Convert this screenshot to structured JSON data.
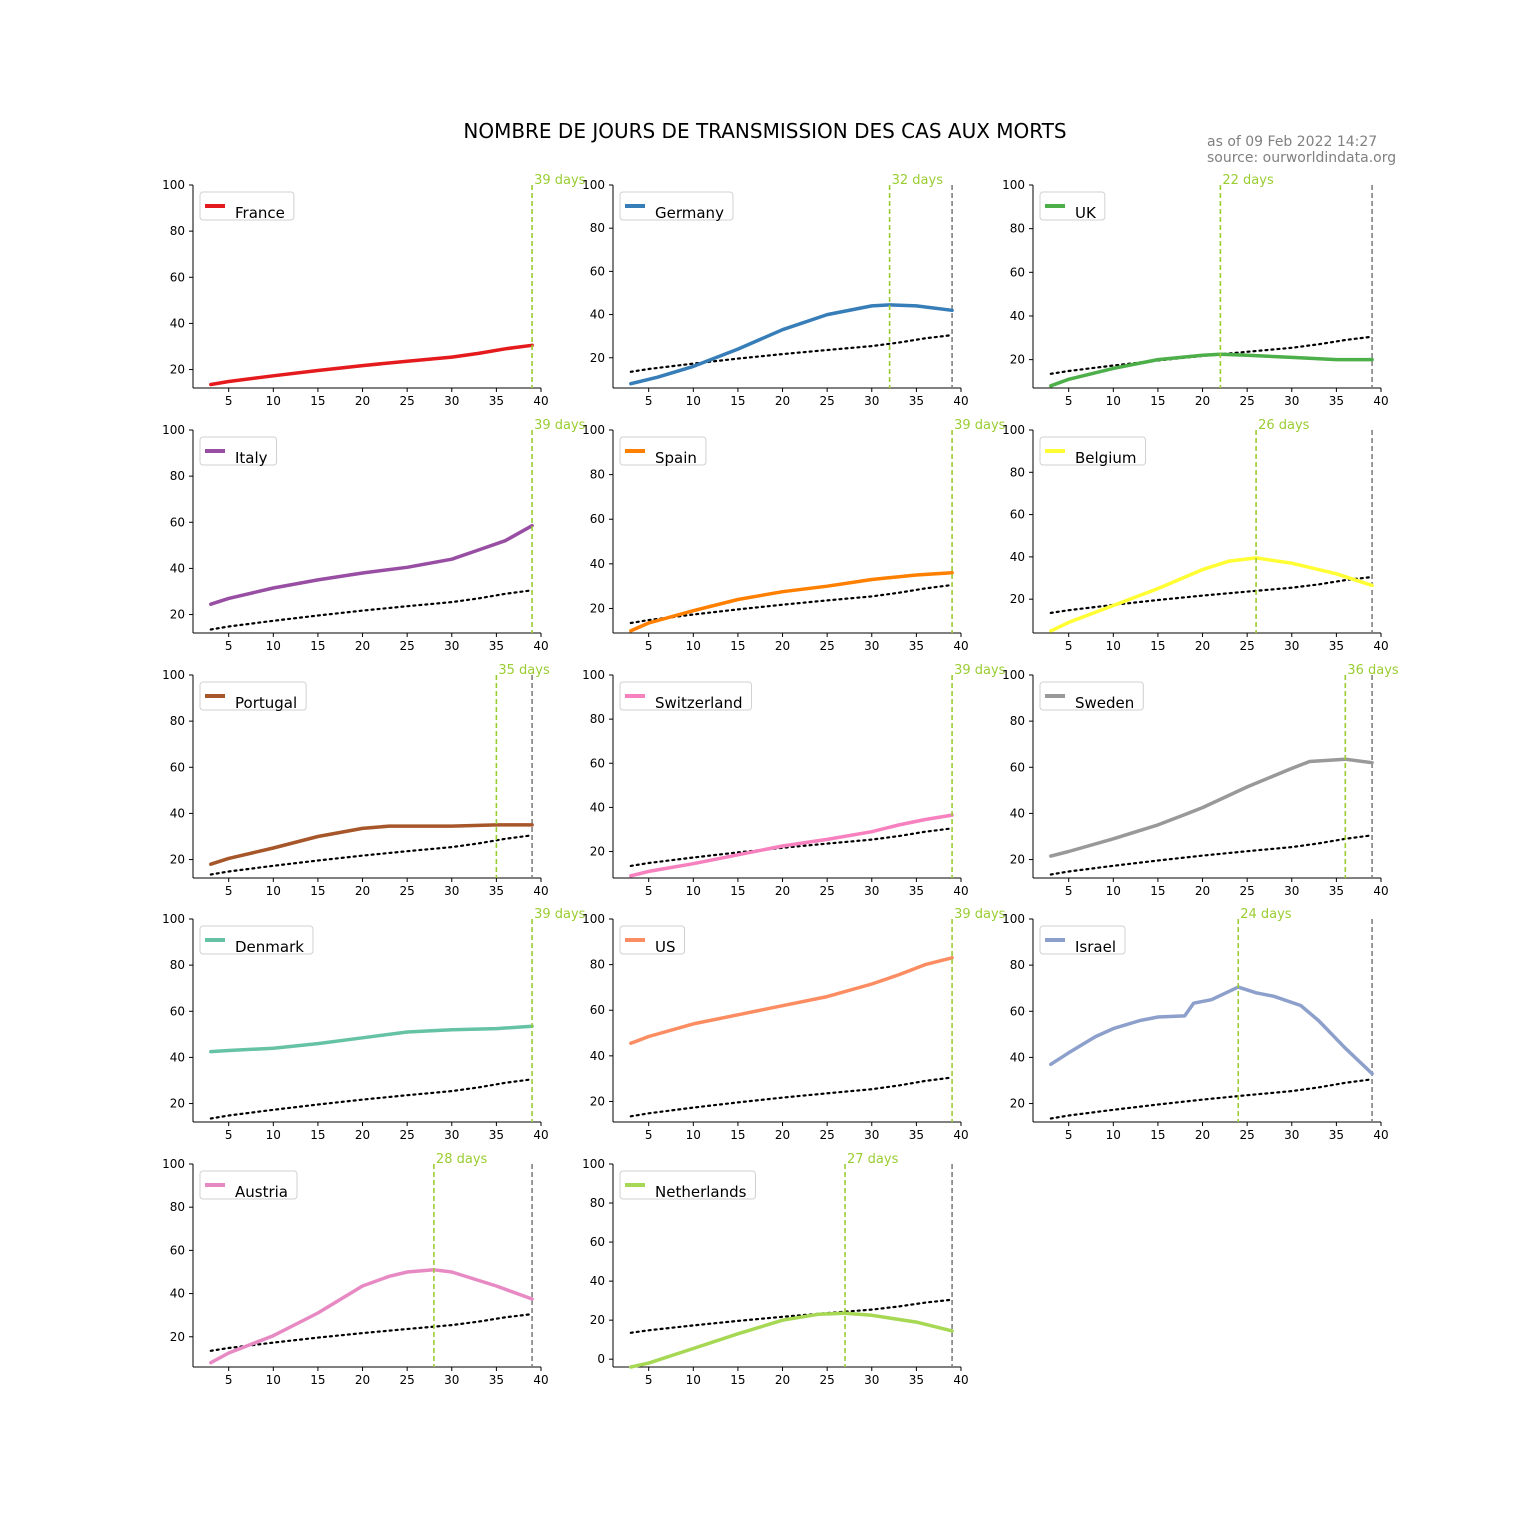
{
  "title": "NOMBRE DE JOURS DE TRANSMISSION DES CAS AUX MORTS",
  "as_of": "as of 09 Feb 2022 14:27",
  "source": "source: ourworldindata.org",
  "chart_data": {
    "type": "line",
    "layout": "small-multiples",
    "xticks": [
      5,
      10,
      15,
      20,
      25,
      30,
      35,
      40
    ],
    "xlim": [
      1,
      40
    ],
    "reference_line": {
      "style": "dotted",
      "color": "#000000",
      "x": [
        3,
        5,
        10,
        15,
        20,
        25,
        30,
        33,
        36,
        39
      ],
      "y": [
        13.5,
        14.8,
        17.3,
        19.6,
        21.7,
        23.6,
        25.4,
        27.0,
        29.0,
        30.5
      ]
    },
    "lag_marker_color": "#9ACD32",
    "end_marker": {
      "x": 39,
      "color": "#808080"
    },
    "panels": [
      {
        "name": "France",
        "color": "#e41a1c",
        "lag_label": "39 days",
        "lag": 39,
        "ylim": [
          12,
          100
        ],
        "yticks": [
          20,
          40,
          60,
          80,
          100
        ],
        "show_reference": false,
        "x": [
          3,
          5,
          10,
          15,
          20,
          25,
          30,
          33,
          36,
          39
        ],
        "y": [
          13.5,
          14.8,
          17.3,
          19.6,
          21.7,
          23.6,
          25.4,
          27.0,
          29.0,
          30.5
        ]
      },
      {
        "name": "Germany",
        "color": "#377eb8",
        "lag_label": "32 days",
        "lag": 32,
        "ylim": [
          6,
          100
        ],
        "yticks": [
          20,
          40,
          60,
          80,
          100
        ],
        "show_reference": true,
        "x": [
          3,
          6,
          10,
          15,
          20,
          25,
          30,
          32,
          35,
          39
        ],
        "y": [
          8,
          11,
          16,
          24,
          33,
          40,
          44,
          44.5,
          44,
          42
        ]
      },
      {
        "name": "UK",
        "color": "#4daf4a",
        "lag_label": "22 days",
        "lag": 22,
        "ylim": [
          7,
          100
        ],
        "yticks": [
          20,
          40,
          60,
          80,
          100
        ],
        "show_reference": true,
        "x": [
          3,
          5,
          10,
          15,
          20,
          22,
          25,
          30,
          35,
          39
        ],
        "y": [
          8,
          11,
          16,
          20,
          22,
          22.5,
          22,
          21,
          20,
          20
        ]
      },
      {
        "name": "Italy",
        "color": "#984ea3",
        "lag_label": "39 days",
        "lag": 39,
        "ylim": [
          12,
          100
        ],
        "yticks": [
          20,
          40,
          60,
          80,
          100
        ],
        "show_reference": true,
        "x": [
          3,
          5,
          10,
          15,
          20,
          25,
          30,
          33,
          36,
          39
        ],
        "y": [
          24.5,
          27,
          31.5,
          35,
          38,
          40.5,
          44,
          48,
          52,
          58.5
        ]
      },
      {
        "name": "Spain",
        "color": "#ff7f00",
        "lag_label": "39 days",
        "lag": 39,
        "ylim": [
          9,
          100
        ],
        "yticks": [
          20,
          40,
          60,
          80,
          100
        ],
        "show_reference": true,
        "x": [
          3,
          5,
          10,
          15,
          20,
          25,
          30,
          35,
          37,
          39
        ],
        "y": [
          10,
          13.5,
          19,
          24,
          27.5,
          30,
          33,
          35,
          35.5,
          36
        ]
      },
      {
        "name": "Belgium",
        "color": "#ffff33",
        "lag_label": "26 days",
        "lag": 26,
        "ylim": [
          4,
          100
        ],
        "yticks": [
          20,
          40,
          60,
          80,
          100
        ],
        "show_reference": true,
        "x": [
          3,
          5,
          10,
          15,
          20,
          23,
          26,
          30,
          35,
          39
        ],
        "y": [
          5,
          9,
          17,
          25,
          34,
          38,
          39.5,
          37,
          32,
          26.5
        ]
      },
      {
        "name": "Portugal",
        "color": "#a65628",
        "lag_label": "35 days",
        "lag": 35,
        "ylim": [
          12,
          100
        ],
        "yticks": [
          20,
          40,
          60,
          80,
          100
        ],
        "show_reference": true,
        "x": [
          3,
          5,
          10,
          15,
          20,
          23,
          25,
          30,
          35,
          39
        ],
        "y": [
          18,
          20.5,
          25,
          30,
          33.5,
          34.5,
          34.5,
          34.5,
          35,
          35
        ]
      },
      {
        "name": "Switzerland",
        "color": "#f781bf",
        "lag_label": "39 days",
        "lag": 39,
        "ylim": [
          8,
          100
        ],
        "yticks": [
          20,
          40,
          60,
          80,
          100
        ],
        "show_reference": true,
        "x": [
          3,
          5,
          10,
          15,
          20,
          25,
          30,
          33,
          36,
          39
        ],
        "y": [
          9,
          11,
          14.5,
          18.5,
          22.5,
          25.5,
          29,
          32,
          34.5,
          36.5
        ]
      },
      {
        "name": "Sweden",
        "color": "#999999",
        "lag_label": "36 days",
        "lag": 36,
        "ylim": [
          12,
          100
        ],
        "yticks": [
          20,
          40,
          60,
          80,
          100
        ],
        "show_reference": true,
        "x": [
          3,
          5,
          10,
          15,
          18,
          20,
          25,
          30,
          32,
          36,
          39
        ],
        "y": [
          21.5,
          23.5,
          29,
          35,
          39.5,
          42.5,
          51.5,
          59.5,
          62.5,
          63.5,
          62
        ]
      },
      {
        "name": "Denmark",
        "color": "#66c2a5",
        "lag_label": "39 days",
        "lag": 39,
        "ylim": [
          12,
          100
        ],
        "yticks": [
          20,
          40,
          60,
          80,
          100
        ],
        "show_reference": true,
        "x": [
          3,
          5,
          10,
          15,
          20,
          25,
          30,
          35,
          39
        ],
        "y": [
          42.5,
          43,
          44,
          46,
          48.5,
          51,
          52,
          52.5,
          53.5
        ]
      },
      {
        "name": "US",
        "color": "#fc8d62",
        "lag_label": "39 days",
        "lag": 39,
        "ylim": [
          11,
          100
        ],
        "yticks": [
          20,
          40,
          60,
          80,
          100
        ],
        "show_reference": true,
        "x": [
          3,
          5,
          10,
          15,
          20,
          25,
          30,
          33,
          36,
          39
        ],
        "y": [
          45.5,
          48.5,
          54,
          58,
          62,
          66,
          71.5,
          75.5,
          80,
          83
        ]
      },
      {
        "name": "Israel",
        "color": "#8da0cb",
        "lag_label": "24 days",
        "lag": 24,
        "ylim": [
          12,
          100
        ],
        "yticks": [
          20,
          40,
          60,
          80,
          100
        ],
        "show_reference": true,
        "x": [
          3,
          5,
          8,
          10,
          13,
          15,
          18,
          19,
          21,
          24,
          26,
          28,
          31,
          33,
          36,
          39
        ],
        "y": [
          37,
          42,
          49,
          52.5,
          56,
          57.5,
          58,
          63.5,
          65,
          70.5,
          68,
          66.5,
          62.5,
          56,
          44,
          33
        ]
      },
      {
        "name": "Austria",
        "color": "#e78ac3",
        "lag_label": "28 days",
        "lag": 28,
        "ylim": [
          6,
          100
        ],
        "yticks": [
          20,
          40,
          60,
          80,
          100
        ],
        "show_reference": true,
        "x": [
          3,
          5,
          10,
          15,
          20,
          23,
          25,
          28,
          30,
          35,
          39
        ],
        "y": [
          8,
          12.5,
          20.5,
          31,
          43.5,
          48,
          50,
          51,
          50,
          43.5,
          37.5
        ]
      },
      {
        "name": "Netherlands",
        "color": "#a6d854",
        "lag_label": "27 days",
        "lag": 27,
        "ylim": [
          -4,
          100
        ],
        "yticks": [
          0,
          20,
          40,
          60,
          80,
          100
        ],
        "show_reference": true,
        "x": [
          3,
          5,
          10,
          15,
          20,
          24,
          27,
          30,
          35,
          39
        ],
        "y": [
          -4,
          -2,
          5.5,
          13,
          20,
          23,
          23.5,
          22.5,
          19,
          14.5
        ]
      }
    ]
  }
}
